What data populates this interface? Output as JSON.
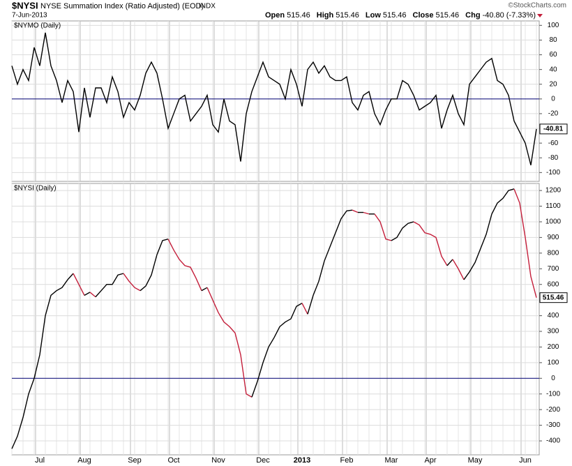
{
  "header": {
    "symbol": "$NYSI",
    "name": "NYSE Summation Index (Ratio Adjusted) (EOD)",
    "exchange": "INDX",
    "date": "7-Jun-2013",
    "stats": [
      {
        "label": "Open",
        "value": "515.46"
      },
      {
        "label": "High",
        "value": "515.46"
      },
      {
        "label": "Low",
        "value": "515.46"
      },
      {
        "label": "Close",
        "value": "515.46"
      },
      {
        "label": "Chg",
        "value": "-40.80 (-7.33%)"
      }
    ],
    "credit": "©StockCharts.com"
  },
  "chart_data": [
    {
      "type": "line",
      "title": "$NYMO (Daily)",
      "color": "#000000",
      "zero_line_color": "#1a1a80",
      "grid": true,
      "values": [
        45,
        20,
        40,
        25,
        70,
        45,
        90,
        45,
        25,
        -5,
        25,
        10,
        -45,
        15,
        -25,
        15,
        15,
        -5,
        30,
        10,
        -25,
        -5,
        -15,
        5,
        35,
        50,
        35,
        0,
        -40,
        -20,
        0,
        5,
        -30,
        -20,
        -10,
        5,
        -35,
        -45,
        0,
        -30,
        -35,
        -85,
        -20,
        10,
        30,
        50,
        30,
        25,
        20,
        0,
        40,
        20,
        -10,
        40,
        50,
        35,
        45,
        30,
        25,
        25,
        30,
        -5,
        -15,
        5,
        10,
        -20,
        -35,
        -15,
        0,
        0,
        25,
        20,
        5,
        -15,
        -10,
        -5,
        5,
        -40,
        -15,
        5,
        -20,
        -35,
        20,
        30,
        40,
        50,
        55,
        25,
        20,
        5,
        -30,
        -45,
        -60,
        -90,
        -40.81
      ],
      "ylim": [
        -112,
        106
      ],
      "yticks": [
        -100,
        -80,
        -60,
        -40,
        -20,
        0,
        20,
        40,
        60,
        80,
        100
      ]
    },
    {
      "type": "line",
      "title": "$NYSI (Daily)",
      "up_color": "#000000",
      "down_color": "#c41e3a",
      "zero_line_color": "#1a1a80",
      "grid": true,
      "categories": [
        null,
        null,
        null,
        null,
        null,
        "Jul",
        null,
        null,
        null,
        null,
        null,
        null,
        null,
        "Aug",
        null,
        null,
        null,
        null,
        null,
        null,
        null,
        null,
        "Sep",
        null,
        null,
        null,
        null,
        null,
        null,
        "Oct",
        null,
        null,
        null,
        null,
        null,
        null,
        null,
        "Nov",
        null,
        null,
        null,
        null,
        null,
        null,
        null,
        "Dec",
        null,
        null,
        null,
        null,
        null,
        null,
        "2013",
        null,
        null,
        null,
        null,
        null,
        null,
        null,
        "Feb",
        null,
        null,
        null,
        null,
        null,
        null,
        null,
        "Mar",
        null,
        null,
        null,
        null,
        null,
        null,
        "Apr",
        null,
        null,
        null,
        null,
        null,
        null,
        null,
        "May",
        null,
        null,
        null,
        null,
        null,
        null,
        null,
        null,
        "Jun",
        null,
        null
      ],
      "values": [
        -450,
        -370,
        -250,
        -100,
        0,
        150,
        400,
        530,
        560,
        580,
        630,
        670,
        600,
        530,
        550,
        520,
        560,
        600,
        600,
        660,
        670,
        620,
        580,
        560,
        590,
        660,
        790,
        880,
        890,
        820,
        760,
        720,
        710,
        640,
        560,
        580,
        500,
        420,
        360,
        330,
        290,
        150,
        -100,
        -120,
        -20,
        100,
        200,
        260,
        330,
        360,
        380,
        460,
        480,
        410,
        530,
        620,
        750,
        840,
        930,
        1020,
        1070,
        1075,
        1060,
        1060,
        1050,
        1050,
        1000,
        890,
        880,
        900,
        960,
        990,
        1000,
        980,
        930,
        920,
        900,
        780,
        720,
        760,
        700,
        630,
        680,
        740,
        830,
        920,
        1050,
        1120,
        1150,
        1200,
        1210,
        1120,
        900,
        650,
        515.46
      ],
      "ylim": [
        -489,
        1245
      ],
      "yticks": [
        -400,
        -300,
        -200,
        -100,
        0,
        100,
        200,
        300,
        400,
        500,
        600,
        700,
        800,
        900,
        1000,
        1100,
        1200
      ]
    }
  ]
}
